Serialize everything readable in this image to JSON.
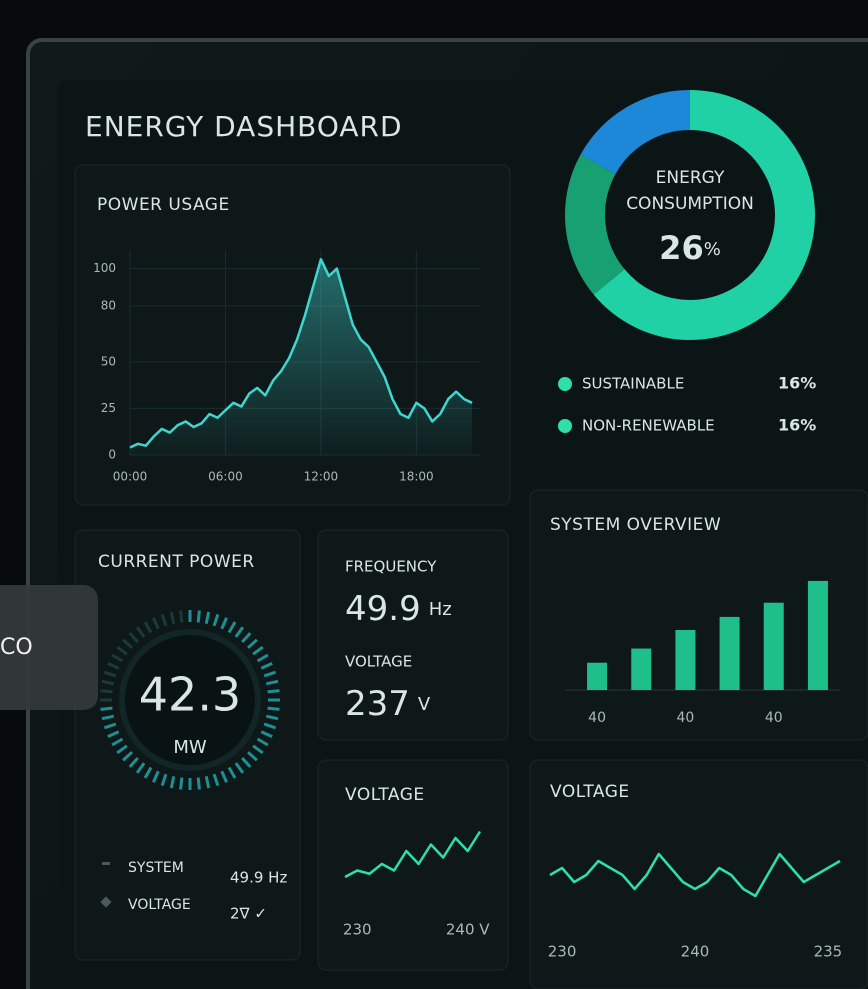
{
  "header": {
    "title": "ENERGY DASHBOARD"
  },
  "chart_data": [
    {
      "type": "line",
      "title": "POWER USAGE",
      "color": "#3fd6d0",
      "x": [
        0,
        0.5,
        1,
        1.5,
        2,
        2.5,
        3,
        3.5,
        4,
        4.5,
        5,
        5.5,
        6,
        6.5,
        7,
        7.5,
        8,
        8.5,
        9,
        9.5,
        10,
        10.5,
        11,
        11.5,
        12,
        12.5,
        13,
        13.5,
        14,
        14.5,
        15,
        15.5,
        16,
        16.5,
        17,
        17.5,
        18,
        18.5,
        19,
        19.5,
        20,
        20.5,
        21,
        21.5
      ],
      "values": [
        4,
        6,
        5,
        10,
        14,
        12,
        16,
        18,
        15,
        17,
        22,
        20,
        24,
        28,
        26,
        33,
        36,
        32,
        40,
        45,
        52,
        62,
        75,
        90,
        105,
        96,
        100,
        85,
        70,
        62,
        58,
        50,
        42,
        30,
        22,
        20,
        28,
        25,
        18,
        22,
        30,
        34,
        30,
        28
      ],
      "xlim": [
        0,
        22
      ],
      "xticks": [
        {
          "value": 0,
          "label": "00:00"
        },
        {
          "value": 6,
          "label": "06:00"
        },
        {
          "value": 12,
          "label": "12:00"
        },
        {
          "value": 18,
          "label": "18:00"
        }
      ],
      "ylim": [
        0,
        110
      ],
      "yticks": [
        0,
        25,
        50,
        80,
        100
      ],
      "grid": true
    },
    {
      "type": "pie",
      "title_lines": [
        "ENERGY",
        "CONSUMPTION"
      ],
      "center_number": 26,
      "center_unit": "%",
      "categories": [
        null,
        null,
        null
      ],
      "values": [
        64,
        19,
        17
      ],
      "colors": [
        "#1fd1a4",
        "#17a172",
        "#1e88d8"
      ],
      "legend": [
        {
          "label": "SUSTAINABLE",
          "value": "16%"
        },
        {
          "label": "NON-RENEWABLE",
          "value": "16%"
        }
      ],
      "legend_color": "#2ee0a8"
    },
    {
      "type": "bar",
      "title": "SYSTEM OVERVIEW",
      "color": "#1fbf8a",
      "categories": [
        "40",
        null,
        "40",
        null,
        "40",
        null
      ],
      "values": [
        25,
        38,
        55,
        67,
        80,
        100
      ],
      "ylim": [
        0,
        110
      ]
    },
    {
      "type": "line",
      "title": "VOLTAGE",
      "color": "#2ee0a8",
      "categories": [
        null,
        "230",
        null,
        null,
        null,
        null,
        null,
        null,
        null,
        null,
        "240 V",
        null
      ],
      "values": [
        2,
        3,
        2.5,
        4,
        3,
        6,
        4,
        7,
        5,
        8,
        6,
        9
      ],
      "ylim": [
        0,
        10
      ]
    },
    {
      "type": "line",
      "title": "VOLTAGE",
      "color": "#2ee0a8",
      "categories": [
        null,
        "230",
        null,
        null,
        null,
        null,
        null,
        null,
        null,
        null,
        null,
        null,
        "240",
        null,
        null,
        null,
        null,
        null,
        null,
        null,
        null,
        null,
        null,
        "235",
        null
      ],
      "values": [
        5,
        6,
        4,
        5,
        7,
        6,
        5,
        3,
        5,
        8,
        6,
        4,
        3,
        4,
        6,
        5,
        3,
        2,
        5,
        8,
        6,
        4,
        5,
        6,
        7
      ],
      "ylim": [
        0,
        10
      ]
    }
  ],
  "current_power": {
    "title": "CURRENT POWER",
    "value": 42.3,
    "unit": "MW",
    "rows": [
      {
        "label": "SYSTEM",
        "value": "49.9 Hz"
      },
      {
        "label": "VOLTAGE",
        "value": "2∇ ✓"
      }
    ]
  },
  "readings": [
    {
      "label": "FREQUENCY",
      "value": 49.9,
      "unit": "Hz"
    },
    {
      "label": "VOLTAGE",
      "value": 237,
      "unit": "V"
    }
  ],
  "overlay": {
    "label": "CO"
  }
}
